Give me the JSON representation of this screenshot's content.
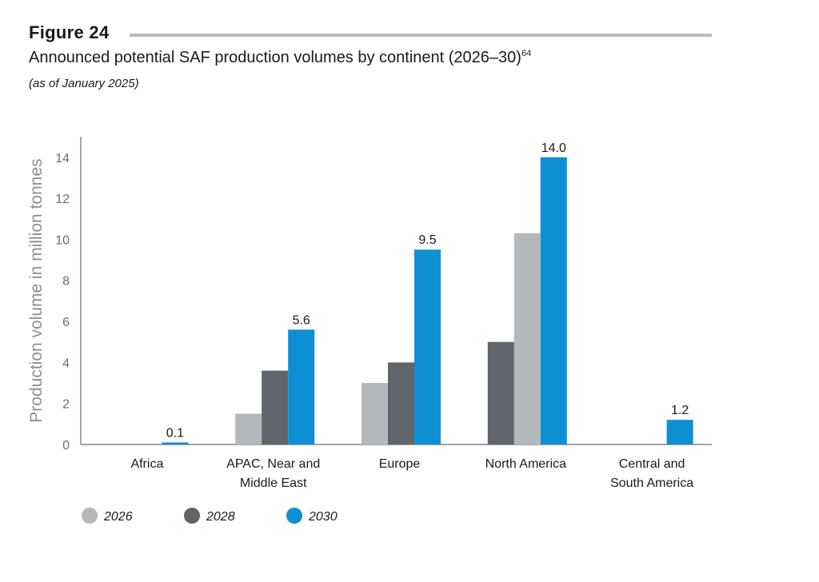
{
  "figure_label": "Figure 24",
  "title": "Announced potential SAF production volumes by continent (2026–30)",
  "title_footnote": "64",
  "subtitle": "(as of January 2025)",
  "chart_data": {
    "type": "bar",
    "title": "Announced potential SAF production volumes by continent (2026–30)",
    "xlabel": "",
    "ylabel": "Production volume in million tonnes",
    "ylim": [
      0,
      15
    ],
    "yticks": [
      0,
      2,
      4,
      6,
      8,
      10,
      12,
      14
    ],
    "categories": [
      [
        "Africa"
      ],
      [
        "APAC, Near and",
        "Middle East"
      ],
      [
        "Europe"
      ],
      [
        "North America"
      ],
      [
        "Central and",
        "South America"
      ]
    ],
    "series": [
      {
        "name": "2026",
        "color": "#b4b8bb",
        "values": [
          0,
          1.5,
          3.0,
          10.3,
          0
        ]
      },
      {
        "name": "2028",
        "color": "#5f656b",
        "values": [
          0,
          3.6,
          4.0,
          5.0,
          0
        ]
      },
      {
        "name": "2030",
        "color": "#0e8fd3",
        "values": [
          0.1,
          5.6,
          9.5,
          14.0,
          1.2
        ]
      }
    ],
    "bar_order": [
      [
        "2026",
        "2028",
        "2030"
      ],
      [
        "2026",
        "2028",
        "2030"
      ],
      [
        "2026",
        "2028",
        "2030"
      ],
      [
        "2028",
        "2026",
        "2030"
      ],
      [
        "2026",
        "2028",
        "2030"
      ]
    ],
    "data_labels": [
      "0.1",
      "5.6",
      "9.5",
      "14.0",
      "1.2"
    ],
    "data_label_series": "2030",
    "legend_position": "bottom-left"
  }
}
